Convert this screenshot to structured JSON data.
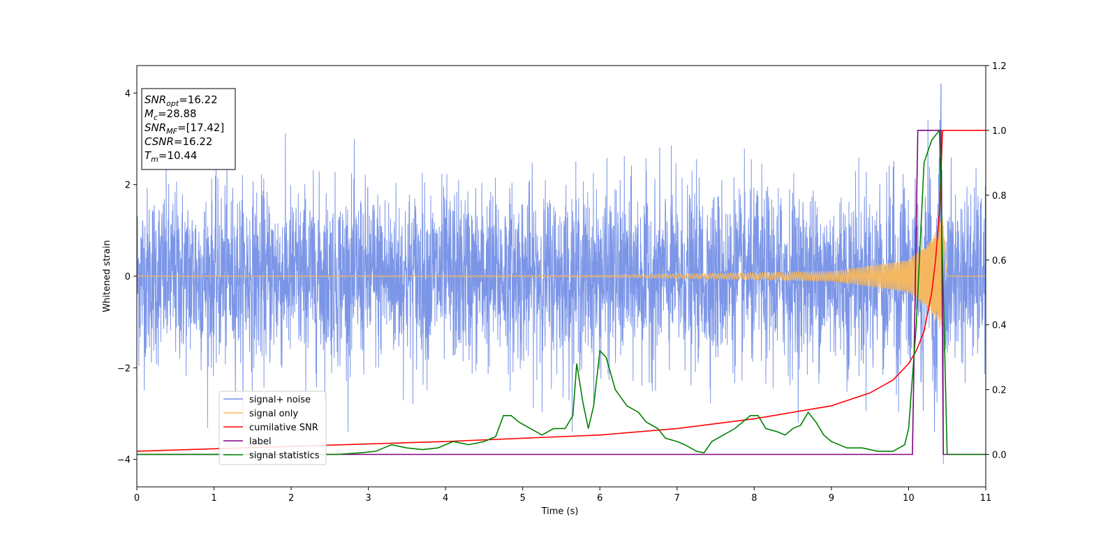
{
  "chart_data": {
    "type": "line",
    "title": "",
    "xlabel": "Time (s)",
    "ylabel": "Whitened strain",
    "xlim": [
      0,
      11
    ],
    "ylim": [
      -4.6,
      4.6
    ],
    "y2lim": [
      -0.1,
      1.2
    ],
    "xticks": [
      "0",
      "1",
      "2",
      "3",
      "4",
      "5",
      "6",
      "7",
      "8",
      "9",
      "10",
      "11"
    ],
    "yticks": [
      "4",
      "2",
      "0",
      "−2",
      "−4"
    ],
    "y2ticks": [
      "1.2",
      "1.0",
      "0.8",
      "0.6",
      "0.4",
      "0.2",
      "0.0"
    ],
    "info_box": [
      {
        "main": "SNR",
        "sub": "opt",
        "value": "=16.22"
      },
      {
        "main": "M",
        "sub": "c",
        "value": "=28.88"
      },
      {
        "main": "SNR",
        "sub": "MF",
        "value": "=[17.42]"
      },
      {
        "main": "CSNR",
        "sub": "",
        "value": "=16.22"
      },
      {
        "main": "T",
        "sub": "m",
        "value": "=10.44"
      }
    ],
    "legend_position": "lower-left",
    "series": [
      {
        "name": "signal+ noise",
        "axis": "left",
        "color": "#7590e6",
        "description_values": "Gaussian-like whitened noise, mostly within [-2, 2] with peaks to about ±3.4; maximum 4.2 near t=10.42, minimum -4.1 near t=10.45"
      },
      {
        "name": "signal only",
        "axis": "left",
        "color": "#f5b860",
        "chirp": {
          "t_merge": 10.44,
          "amplitude_at_merge": 1.3,
          "amplitude_early": 0.02,
          "points": [
            [
              0,
              0.0
            ],
            [
              6,
              0.02
            ],
            [
              9,
              0.1
            ],
            [
              10,
              0.35
            ],
            [
              10.3,
              0.8
            ],
            [
              10.44,
              1.3
            ],
            [
              10.5,
              0.0
            ],
            [
              11,
              0.0
            ]
          ]
        }
      },
      {
        "name": "cumilative SNR",
        "axis": "right",
        "color": "#ff0000",
        "points": [
          [
            0,
            0.01
          ],
          [
            2,
            0.025
          ],
          [
            4,
            0.04
          ],
          [
            5,
            0.05
          ],
          [
            6,
            0.06
          ],
          [
            7,
            0.08
          ],
          [
            8,
            0.11
          ],
          [
            9,
            0.15
          ],
          [
            9.5,
            0.19
          ],
          [
            9.8,
            0.23
          ],
          [
            10.0,
            0.28
          ],
          [
            10.1,
            0.32
          ],
          [
            10.2,
            0.38
          ],
          [
            10.3,
            0.5
          ],
          [
            10.35,
            0.6
          ],
          [
            10.4,
            0.75
          ],
          [
            10.44,
            1.0
          ],
          [
            11,
            1.0
          ]
        ]
      },
      {
        "name": "label",
        "axis": "right",
        "color": "#800080",
        "points": [
          [
            0,
            0.0
          ],
          [
            10.05,
            0.0
          ],
          [
            10.12,
            1.0
          ],
          [
            10.42,
            1.0
          ],
          [
            10.45,
            0.0
          ],
          [
            11,
            0.0
          ]
        ]
      },
      {
        "name": "signal statistics",
        "axis": "right",
        "color": "#008000",
        "points": [
          [
            0,
            0.0
          ],
          [
            1,
            0.0
          ],
          [
            2,
            0.0
          ],
          [
            2.6,
            0.0
          ],
          [
            2.9,
            0.005
          ],
          [
            3.1,
            0.01
          ],
          [
            3.2,
            0.02
          ],
          [
            3.3,
            0.03
          ],
          [
            3.5,
            0.02
          ],
          [
            3.7,
            0.015
          ],
          [
            3.9,
            0.02
          ],
          [
            4.1,
            0.04
          ],
          [
            4.3,
            0.03
          ],
          [
            4.5,
            0.04
          ],
          [
            4.65,
            0.055
          ],
          [
            4.75,
            0.12
          ],
          [
            4.85,
            0.12
          ],
          [
            4.95,
            0.1
          ],
          [
            5.1,
            0.08
          ],
          [
            5.25,
            0.06
          ],
          [
            5.4,
            0.08
          ],
          [
            5.55,
            0.08
          ],
          [
            5.65,
            0.12
          ],
          [
            5.7,
            0.28
          ],
          [
            5.78,
            0.16
          ],
          [
            5.85,
            0.08
          ],
          [
            5.92,
            0.15
          ],
          [
            6.0,
            0.32
          ],
          [
            6.08,
            0.3
          ],
          [
            6.2,
            0.2
          ],
          [
            6.35,
            0.15
          ],
          [
            6.5,
            0.13
          ],
          [
            6.6,
            0.1
          ],
          [
            6.75,
            0.08
          ],
          [
            6.85,
            0.05
          ],
          [
            7.0,
            0.04
          ],
          [
            7.1,
            0.03
          ],
          [
            7.25,
            0.01
          ],
          [
            7.35,
            0.005
          ],
          [
            7.45,
            0.04
          ],
          [
            7.6,
            0.06
          ],
          [
            7.75,
            0.08
          ],
          [
            7.85,
            0.1
          ],
          [
            7.95,
            0.12
          ],
          [
            8.05,
            0.12
          ],
          [
            8.15,
            0.08
          ],
          [
            8.3,
            0.07
          ],
          [
            8.4,
            0.06
          ],
          [
            8.5,
            0.08
          ],
          [
            8.6,
            0.09
          ],
          [
            8.7,
            0.13
          ],
          [
            8.8,
            0.1
          ],
          [
            8.9,
            0.06
          ],
          [
            9.0,
            0.04
          ],
          [
            9.2,
            0.02
          ],
          [
            9.4,
            0.02
          ],
          [
            9.6,
            0.01
          ],
          [
            9.8,
            0.01
          ],
          [
            9.95,
            0.03
          ],
          [
            10.0,
            0.08
          ],
          [
            10.1,
            0.4
          ],
          [
            10.2,
            0.9
          ],
          [
            10.3,
            0.97
          ],
          [
            10.4,
            1.0
          ],
          [
            10.45,
            0.5
          ],
          [
            10.5,
            0.0
          ],
          [
            11,
            0.0
          ]
        ]
      }
    ]
  }
}
